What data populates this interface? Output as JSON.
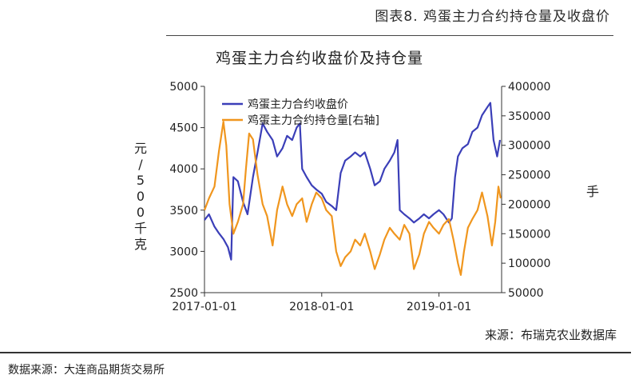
{
  "header": {
    "figure_title": "图表8.   鸡蛋主力合约持仓量及收盘价"
  },
  "chart_data": {
    "type": "line",
    "title": "鸡蛋主力合约收盘价及持仓量",
    "ylabel": "元/500千克",
    "y2label": "手",
    "ylim": [
      2500,
      5000
    ],
    "y2lim": [
      50000,
      400000
    ],
    "yticks": [
      "2500",
      "3000",
      "3500",
      "4000",
      "4500",
      "5000"
    ],
    "y2ticks": [
      "50000",
      "100000",
      "150000",
      "200000",
      "250000",
      "300000",
      "350000",
      "400000"
    ],
    "xlim": [
      "2017-01-01",
      "2019-07-15"
    ],
    "xticks": [
      "2017-01-01",
      "2018-01-01",
      "2019-01-01"
    ],
    "legend_position": "top-left",
    "series": [
      {
        "name": "鸡蛋主力合约收盘价",
        "axis": "left",
        "color": "#3b3fb8",
        "points": [
          [
            "2017-01-01",
            3380
          ],
          [
            "2017-01-15",
            3450
          ],
          [
            "2017-02-01",
            3300
          ],
          [
            "2017-02-15",
            3220
          ],
          [
            "2017-03-01",
            3150
          ],
          [
            "2017-03-15",
            3050
          ],
          [
            "2017-03-25",
            2900
          ],
          [
            "2017-04-01",
            3900
          ],
          [
            "2017-04-15",
            3850
          ],
          [
            "2017-05-01",
            3600
          ],
          [
            "2017-05-15",
            3450
          ],
          [
            "2017-06-01",
            3900
          ],
          [
            "2017-06-15",
            4200
          ],
          [
            "2017-07-01",
            4550
          ],
          [
            "2017-07-15",
            4450
          ],
          [
            "2017-08-01",
            4350
          ],
          [
            "2017-08-15",
            4150
          ],
          [
            "2017-09-01",
            4250
          ],
          [
            "2017-09-15",
            4400
          ],
          [
            "2017-10-01",
            4350
          ],
          [
            "2017-10-15",
            4500
          ],
          [
            "2017-10-25",
            4550
          ],
          [
            "2017-11-01",
            4000
          ],
          [
            "2017-11-15",
            3900
          ],
          [
            "2017-12-01",
            3800
          ],
          [
            "2017-12-15",
            3750
          ],
          [
            "2018-01-01",
            3700
          ],
          [
            "2018-01-15",
            3600
          ],
          [
            "2018-02-01",
            3550
          ],
          [
            "2018-02-15",
            3500
          ],
          [
            "2018-03-01",
            3950
          ],
          [
            "2018-03-15",
            4100
          ],
          [
            "2018-04-01",
            4150
          ],
          [
            "2018-04-15",
            4200
          ],
          [
            "2018-05-01",
            4150
          ],
          [
            "2018-05-15",
            4200
          ],
          [
            "2018-06-01",
            4000
          ],
          [
            "2018-06-15",
            3800
          ],
          [
            "2018-07-01",
            3850
          ],
          [
            "2018-07-15",
            4000
          ],
          [
            "2018-08-01",
            4100
          ],
          [
            "2018-08-15",
            4200
          ],
          [
            "2018-08-25",
            4350
          ],
          [
            "2018-09-01",
            3500
          ],
          [
            "2018-09-15",
            3450
          ],
          [
            "2018-10-01",
            3400
          ],
          [
            "2018-10-15",
            3350
          ],
          [
            "2018-11-01",
            3400
          ],
          [
            "2018-11-15",
            3450
          ],
          [
            "2018-12-01",
            3400
          ],
          [
            "2018-12-15",
            3450
          ],
          [
            "2019-01-01",
            3500
          ],
          [
            "2019-01-15",
            3450
          ],
          [
            "2019-02-01",
            3350
          ],
          [
            "2019-02-10",
            3400
          ],
          [
            "2019-02-20",
            3900
          ],
          [
            "2019-03-01",
            4150
          ],
          [
            "2019-03-15",
            4250
          ],
          [
            "2019-04-01",
            4300
          ],
          [
            "2019-04-15",
            4450
          ],
          [
            "2019-05-01",
            4500
          ],
          [
            "2019-05-15",
            4650
          ],
          [
            "2019-06-01",
            4750
          ],
          [
            "2019-06-10",
            4800
          ],
          [
            "2019-06-20",
            4350
          ],
          [
            "2019-07-01",
            4150
          ],
          [
            "2019-07-10",
            4350
          ]
        ]
      },
      {
        "name": "鸡蛋主力合约持仓量[右轴]",
        "axis": "right",
        "color": "#f0961e",
        "points": [
          [
            "2017-01-01",
            190000
          ],
          [
            "2017-01-15",
            210000
          ],
          [
            "2017-02-01",
            230000
          ],
          [
            "2017-02-15",
            290000
          ],
          [
            "2017-03-01",
            340000
          ],
          [
            "2017-03-10",
            300000
          ],
          [
            "2017-03-20",
            200000
          ],
          [
            "2017-04-01",
            150000
          ],
          [
            "2017-04-15",
            170000
          ],
          [
            "2017-05-01",
            200000
          ],
          [
            "2017-05-10",
            260000
          ],
          [
            "2017-05-20",
            320000
          ],
          [
            "2017-06-01",
            310000
          ],
          [
            "2017-06-15",
            250000
          ],
          [
            "2017-07-01",
            200000
          ],
          [
            "2017-07-15",
            180000
          ],
          [
            "2017-08-01",
            130000
          ],
          [
            "2017-08-15",
            190000
          ],
          [
            "2017-09-01",
            230000
          ],
          [
            "2017-09-15",
            200000
          ],
          [
            "2017-10-01",
            180000
          ],
          [
            "2017-10-15",
            200000
          ],
          [
            "2017-11-01",
            210000
          ],
          [
            "2017-11-15",
            170000
          ],
          [
            "2017-12-01",
            200000
          ],
          [
            "2017-12-15",
            220000
          ],
          [
            "2018-01-01",
            210000
          ],
          [
            "2018-01-15",
            190000
          ],
          [
            "2018-02-01",
            180000
          ],
          [
            "2018-02-15",
            120000
          ],
          [
            "2018-03-01",
            95000
          ],
          [
            "2018-03-15",
            110000
          ],
          [
            "2018-04-01",
            120000
          ],
          [
            "2018-04-15",
            140000
          ],
          [
            "2018-05-01",
            130000
          ],
          [
            "2018-05-15",
            150000
          ],
          [
            "2018-06-01",
            120000
          ],
          [
            "2018-06-15",
            90000
          ],
          [
            "2018-07-01",
            115000
          ],
          [
            "2018-07-15",
            140000
          ],
          [
            "2018-08-01",
            160000
          ],
          [
            "2018-08-15",
            150000
          ],
          [
            "2018-09-01",
            140000
          ],
          [
            "2018-09-15",
            165000
          ],
          [
            "2018-10-01",
            150000
          ],
          [
            "2018-10-15",
            90000
          ],
          [
            "2018-11-01",
            115000
          ],
          [
            "2018-11-15",
            150000
          ],
          [
            "2018-12-01",
            170000
          ],
          [
            "2018-12-15",
            160000
          ],
          [
            "2019-01-01",
            150000
          ],
          [
            "2019-01-15",
            165000
          ],
          [
            "2019-02-01",
            175000
          ],
          [
            "2019-02-15",
            140000
          ],
          [
            "2019-03-01",
            100000
          ],
          [
            "2019-03-10",
            80000
          ],
          [
            "2019-03-20",
            120000
          ],
          [
            "2019-04-01",
            160000
          ],
          [
            "2019-04-15",
            175000
          ],
          [
            "2019-05-01",
            190000
          ],
          [
            "2019-05-15",
            220000
          ],
          [
            "2019-06-01",
            180000
          ],
          [
            "2019-06-15",
            130000
          ],
          [
            "2019-06-25",
            170000
          ],
          [
            "2019-07-05",
            230000
          ],
          [
            "2019-07-12",
            210000
          ]
        ]
      }
    ]
  },
  "footer": {
    "source_right": "来源：布瑞克农业数据库",
    "source_bottom": "数据来源：大连商品期货交易所"
  }
}
